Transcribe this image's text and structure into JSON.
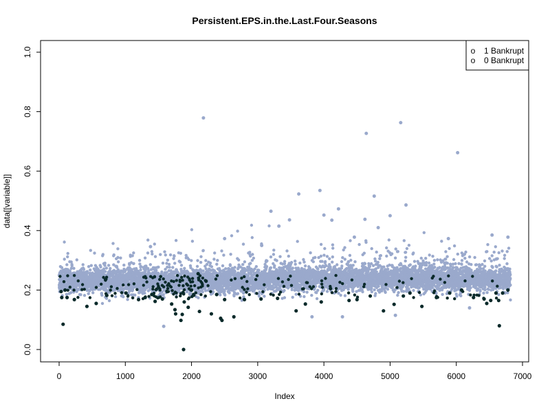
{
  "chart_data": {
    "type": "scatter",
    "title": "Persistent.EPS.in.the.Last.Four.Seasons",
    "xlabel": "Index",
    "ylabel": "data[[variable]]",
    "xlim": [
      0,
      7000
    ],
    "ylim": [
      0,
      1
    ],
    "x_ticks": [
      0,
      1000,
      2000,
      3000,
      4000,
      5000,
      6000,
      7000
    ],
    "y_ticks": [
      0.0,
      0.2,
      0.4,
      0.6,
      0.8,
      1.0
    ],
    "y_tick_labels": [
      "0.0",
      "0.2",
      "0.4",
      "0.6",
      "0.8",
      "1.0"
    ],
    "grid": false,
    "legend_position": "top-right",
    "legend": [
      {
        "symbol": "o",
        "label": "1 Bankrupt"
      },
      {
        "symbol": "o",
        "label": "0 Bankrupt"
      }
    ],
    "colors": {
      "bankrupt_0": "#9aa9cc",
      "bankrupt_1": "#0a2a2a"
    },
    "series": [
      {
        "name": "0 Bankrupt",
        "color": "#9aa9cc",
        "typical_range": [
          0.19,
          0.27
        ],
        "count": 6600,
        "outliers": [
          {
            "x": 2180,
            "y": 0.779
          },
          {
            "x": 4640,
            "y": 0.727
          },
          {
            "x": 5160,
            "y": 0.763
          },
          {
            "x": 6020,
            "y": 0.662
          },
          {
            "x": 3940,
            "y": 0.535
          },
          {
            "x": 4760,
            "y": 0.516
          },
          {
            "x": 3620,
            "y": 0.523
          },
          {
            "x": 5240,
            "y": 0.486
          },
          {
            "x": 4220,
            "y": 0.473
          },
          {
            "x": 3200,
            "y": 0.465
          },
          {
            "x": 4000,
            "y": 0.452
          },
          {
            "x": 4620,
            "y": 0.438
          },
          {
            "x": 3480,
            "y": 0.436
          },
          {
            "x": 4120,
            "y": 0.435
          },
          {
            "x": 5000,
            "y": 0.45
          },
          {
            "x": 3320,
            "y": 0.415
          },
          {
            "x": 4820,
            "y": 0.41
          },
          {
            "x": 4460,
            "y": 0.378
          },
          {
            "x": 2500,
            "y": 0.373
          },
          {
            "x": 5880,
            "y": 0.373
          },
          {
            "x": 6540,
            "y": 0.385
          },
          {
            "x": 6780,
            "y": 0.378
          },
          {
            "x": 3060,
            "y": 0.35
          },
          {
            "x": 1380,
            "y": 0.346
          },
          {
            "x": 1580,
            "y": 0.078
          },
          {
            "x": 5080,
            "y": 0.115
          },
          {
            "x": 4280,
            "y": 0.11
          },
          {
            "x": 3820,
            "y": 0.11
          },
          {
            "x": 6200,
            "y": 0.14
          }
        ]
      },
      {
        "name": "1 Bankrupt",
        "color": "#0a2a2a",
        "typical_range": [
          0.15,
          0.21
        ],
        "count": 220,
        "points": [
          {
            "x": 30,
            "y": 0.195
          },
          {
            "x": 40,
            "y": 0.175
          },
          {
            "x": 60,
            "y": 0.085
          },
          {
            "x": 90,
            "y": 0.2
          },
          {
            "x": 120,
            "y": 0.175
          },
          {
            "x": 230,
            "y": 0.168
          },
          {
            "x": 420,
            "y": 0.145
          },
          {
            "x": 560,
            "y": 0.155
          },
          {
            "x": 720,
            "y": 0.182
          },
          {
            "x": 1010,
            "y": 0.19
          },
          {
            "x": 1200,
            "y": 0.168
          },
          {
            "x": 1300,
            "y": 0.175
          },
          {
            "x": 1400,
            "y": 0.185
          },
          {
            "x": 1450,
            "y": 0.162
          },
          {
            "x": 1560,
            "y": 0.17
          },
          {
            "x": 1700,
            "y": 0.153
          },
          {
            "x": 1750,
            "y": 0.134
          },
          {
            "x": 1760,
            "y": 0.12
          },
          {
            "x": 1840,
            "y": 0.098
          },
          {
            "x": 1860,
            "y": 0.118
          },
          {
            "x": 1880,
            "y": 0.0
          },
          {
            "x": 1890,
            "y": 0.16
          },
          {
            "x": 1950,
            "y": 0.142
          },
          {
            "x": 2000,
            "y": 0.2
          },
          {
            "x": 2100,
            "y": 0.255
          },
          {
            "x": 2120,
            "y": 0.128
          },
          {
            "x": 2220,
            "y": 0.23
          },
          {
            "x": 2300,
            "y": 0.12
          },
          {
            "x": 2380,
            "y": 0.185
          },
          {
            "x": 2440,
            "y": 0.105
          },
          {
            "x": 2460,
            "y": 0.098
          },
          {
            "x": 2500,
            "y": 0.168
          },
          {
            "x": 2640,
            "y": 0.11
          },
          {
            "x": 2800,
            "y": 0.168
          },
          {
            "x": 3050,
            "y": 0.17
          },
          {
            "x": 3300,
            "y": 0.172
          },
          {
            "x": 3580,
            "y": 0.13
          },
          {
            "x": 3720,
            "y": 0.153
          },
          {
            "x": 3960,
            "y": 0.16
          },
          {
            "x": 4100,
            "y": 0.205
          },
          {
            "x": 4380,
            "y": 0.165
          },
          {
            "x": 4500,
            "y": 0.168
          },
          {
            "x": 4700,
            "y": 0.18
          },
          {
            "x": 4900,
            "y": 0.13
          },
          {
            "x": 5060,
            "y": 0.152
          },
          {
            "x": 5200,
            "y": 0.18
          },
          {
            "x": 5300,
            "y": 0.19
          },
          {
            "x": 5480,
            "y": 0.145
          },
          {
            "x": 5700,
            "y": 0.175
          },
          {
            "x": 5900,
            "y": 0.19
          },
          {
            "x": 6080,
            "y": 0.2
          },
          {
            "x": 6260,
            "y": 0.175
          },
          {
            "x": 6420,
            "y": 0.17
          },
          {
            "x": 6460,
            "y": 0.155
          },
          {
            "x": 6520,
            "y": 0.165
          },
          {
            "x": 6600,
            "y": 0.19
          },
          {
            "x": 6640,
            "y": 0.165
          },
          {
            "x": 6650,
            "y": 0.08
          },
          {
            "x": 6700,
            "y": 0.19
          },
          {
            "x": 6780,
            "y": 0.2
          }
        ]
      }
    ]
  }
}
